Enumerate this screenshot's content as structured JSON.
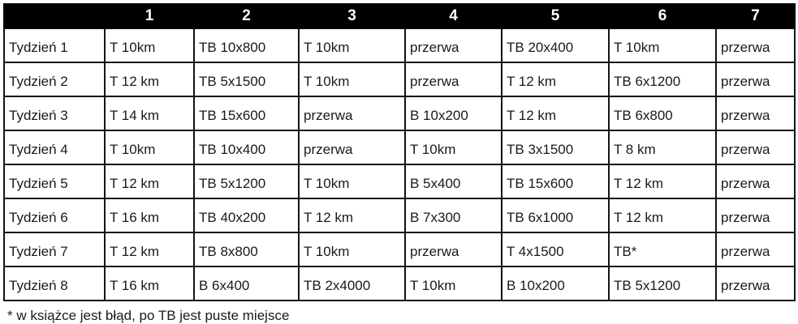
{
  "table": {
    "header": {
      "corner": "",
      "columns": [
        "1",
        "2",
        "3",
        "4",
        "5",
        "6",
        "7"
      ]
    },
    "rows": [
      {
        "label": "Tydzień 1",
        "cells": [
          "T 10km",
          "TB 10x800",
          "T 10km",
          "przerwa",
          "TB 20x400",
          "T 10km",
          "przerwa"
        ]
      },
      {
        "label": "Tydzień 2",
        "cells": [
          "T 12 km",
          "TB 5x1500",
          "T 10km",
          "przerwa",
          "T 12 km",
          "TB 6x1200",
          "przerwa"
        ]
      },
      {
        "label": "Tydzień 3",
        "cells": [
          "T 14 km",
          "TB 15x600",
          "przerwa",
          "B 10x200",
          "T 12 km",
          "TB 6x800",
          "przerwa"
        ]
      },
      {
        "label": "Tydzień 4",
        "cells": [
          "T 10km",
          "TB 10x400",
          "przerwa",
          "T 10km",
          "TB 3x1500",
          "T 8 km",
          "przerwa"
        ]
      },
      {
        "label": "Tydzień 5",
        "cells": [
          "T 12 km",
          "TB 5x1200",
          "T 10km",
          "B 5x400",
          "TB 15x600",
          "T 12 km",
          "przerwa"
        ]
      },
      {
        "label": "Tydzień 6",
        "cells": [
          "T 16 km",
          "TB 40x200",
          "T 12 km",
          "B 7x300",
          "TB 6x1000",
          "T 12 km",
          "przerwa"
        ]
      },
      {
        "label": "Tydzień 7",
        "cells": [
          "T 12 km",
          "TB 8x800",
          "T 10km",
          "przerwa",
          "T 4x1500",
          "TB*",
          "przerwa"
        ]
      },
      {
        "label": "Tydzień 8",
        "cells": [
          "T 16 km",
          "B 6x400",
          "TB 2x4000",
          "T 10km",
          "B 10x200",
          "TB 5x1200",
          "przerwa"
        ]
      }
    ]
  },
  "footnote": "* w książce jest błąd, po TB jest puste miejsce",
  "colors": {
    "header_bg": "#000000",
    "header_text": "#ffffff",
    "cell_text": "#1a1a1a",
    "border": "#141414",
    "background": "#ffffff"
  }
}
